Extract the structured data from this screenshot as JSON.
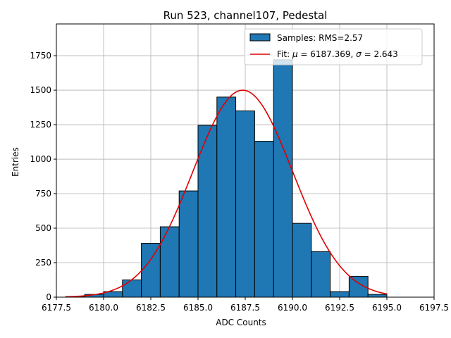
{
  "chart_data": {
    "type": "histogram",
    "title": "Run 523, channel107, Pedestal",
    "xlabel": "ADC Counts",
    "ylabel": "Entries",
    "xlim": [
      6177.5,
      6197.5
    ],
    "ylim": [
      0,
      1980
    ],
    "xticks": [
      6177.5,
      6180.0,
      6182.5,
      6185.0,
      6187.5,
      6190.0,
      6192.5,
      6195.0,
      6197.5
    ],
    "xtick_labels": [
      "6177.5",
      "6180.0",
      "6182.5",
      "6185.0",
      "6187.5",
      "6190.0",
      "6192.5",
      "6195.0",
      "6197.5"
    ],
    "yticks": [
      0,
      250,
      500,
      750,
      1000,
      1250,
      1500,
      1750
    ],
    "ytick_labels": [
      "0",
      "250",
      "500",
      "750",
      "1000",
      "1250",
      "1500",
      "1750"
    ],
    "grid": true,
    "bin_edges": [
      6178.0,
      6179.0,
      6180.0,
      6181.0,
      6182.0,
      6183.0,
      6184.0,
      6185.0,
      6186.0,
      6187.0,
      6188.0,
      6189.0,
      6190.0,
      6191.0,
      6192.0,
      6193.0,
      6194.0,
      6195.0
    ],
    "counts": [
      5,
      20,
      40,
      125,
      390,
      510,
      770,
      1245,
      1450,
      1350,
      1130,
      1720,
      535,
      330,
      40,
      150,
      20
    ],
    "fit": {
      "type": "gaussian",
      "mu": 6187.369,
      "sigma": 2.643,
      "amplitude": 1500,
      "x_range": [
        6178.0,
        6195.0
      ]
    },
    "legend": {
      "position": "top-right",
      "entries": [
        {
          "label": "Samples: RMS=2.57",
          "kind": "bar"
        },
        {
          "label_prefix": "Fit: ",
          "mu_symbol": "μ",
          "mu_text": " = 6187.369, ",
          "sigma_symbol": "σ",
          "sigma_text": " = 2.643",
          "kind": "line"
        }
      ]
    },
    "colors": {
      "bar": "#1f77b4",
      "bar_edge": "#000000",
      "fit": "#e00000",
      "grid": "#b0b0b0",
      "legend_border": "#cccccc"
    }
  }
}
